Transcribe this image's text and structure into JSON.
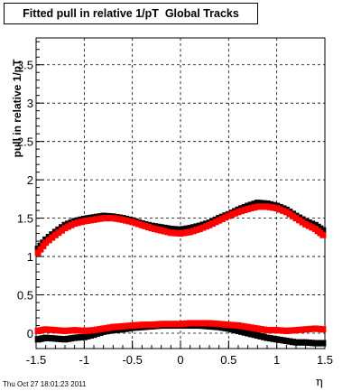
{
  "chart_data": {
    "type": "scatter",
    "title": "Fitted pull in relative 1/pT  Global Tracks",
    "xlabel": "η",
    "ylabel": "pull in relative 1/pT",
    "xlim": [
      -1.5,
      1.5
    ],
    "ylim": [
      -0.2,
      3.85
    ],
    "grid": true,
    "x_ticks": [
      "-1.5",
      "-1",
      "-0.5",
      "0",
      "0.5",
      "1",
      "1.5"
    ],
    "y_ticks": [
      "0",
      "0.5",
      "1",
      "1.5",
      "2",
      "2.5",
      "3",
      "3.5"
    ],
    "series": [
      {
        "color": "#000000",
        "marker": "square",
        "points": [
          [
            -1.48,
            1.1
          ],
          [
            -1.4,
            1.22
          ],
          [
            -1.3,
            1.32
          ],
          [
            -1.2,
            1.41
          ],
          [
            -1.1,
            1.46
          ],
          [
            -1.0,
            1.49
          ],
          [
            -0.9,
            1.51
          ],
          [
            -0.8,
            1.53
          ],
          [
            -0.7,
            1.52
          ],
          [
            -0.6,
            1.5
          ],
          [
            -0.5,
            1.47
          ],
          [
            -0.4,
            1.43
          ],
          [
            -0.3,
            1.4
          ],
          [
            -0.2,
            1.38
          ],
          [
            -0.1,
            1.36
          ],
          [
            0.0,
            1.35
          ],
          [
            0.1,
            1.37
          ],
          [
            0.2,
            1.4
          ],
          [
            0.3,
            1.44
          ],
          [
            0.4,
            1.5
          ],
          [
            0.5,
            1.55
          ],
          [
            0.6,
            1.61
          ],
          [
            0.7,
            1.66
          ],
          [
            0.8,
            1.7
          ],
          [
            0.9,
            1.69
          ],
          [
            1.0,
            1.66
          ],
          [
            1.1,
            1.61
          ],
          [
            1.2,
            1.53
          ],
          [
            1.3,
            1.46
          ],
          [
            1.4,
            1.41
          ],
          [
            1.48,
            1.34
          ]
        ]
      },
      {
        "color": "#ff0000",
        "marker": "square",
        "points": [
          [
            -1.48,
            1.05
          ],
          [
            -1.4,
            1.18
          ],
          [
            -1.3,
            1.28
          ],
          [
            -1.2,
            1.37
          ],
          [
            -1.1,
            1.43
          ],
          [
            -1.0,
            1.46
          ],
          [
            -0.9,
            1.48
          ],
          [
            -0.8,
            1.5
          ],
          [
            -0.7,
            1.5
          ],
          [
            -0.6,
            1.48
          ],
          [
            -0.5,
            1.45
          ],
          [
            -0.4,
            1.41
          ],
          [
            -0.3,
            1.37
          ],
          [
            -0.2,
            1.34
          ],
          [
            -0.1,
            1.31
          ],
          [
            0.0,
            1.3
          ],
          [
            0.1,
            1.32
          ],
          [
            0.2,
            1.36
          ],
          [
            0.3,
            1.41
          ],
          [
            0.4,
            1.47
          ],
          [
            0.5,
            1.53
          ],
          [
            0.6,
            1.58
          ],
          [
            0.7,
            1.62
          ],
          [
            0.8,
            1.65
          ],
          [
            0.9,
            1.65
          ],
          [
            1.0,
            1.63
          ],
          [
            1.1,
            1.58
          ],
          [
            1.2,
            1.5
          ],
          [
            1.3,
            1.42
          ],
          [
            1.4,
            1.36
          ],
          [
            1.48,
            1.28
          ]
        ]
      },
      {
        "color": "#000000",
        "marker": "square",
        "points": [
          [
            -1.48,
            -0.08
          ],
          [
            -1.4,
            -0.06
          ],
          [
            -1.3,
            -0.07
          ],
          [
            -1.2,
            -0.08
          ],
          [
            -1.1,
            -0.06
          ],
          [
            -1.0,
            -0.05
          ],
          [
            -0.9,
            -0.02
          ],
          [
            -0.8,
            0.02
          ],
          [
            -0.7,
            0.04
          ],
          [
            -0.6,
            0.05
          ],
          [
            -0.5,
            0.07
          ],
          [
            -0.4,
            0.08
          ],
          [
            -0.3,
            0.09
          ],
          [
            -0.2,
            0.1
          ],
          [
            -0.1,
            0.1
          ],
          [
            0.0,
            0.1
          ],
          [
            0.1,
            0.1
          ],
          [
            0.2,
            0.1
          ],
          [
            0.3,
            0.09
          ],
          [
            0.4,
            0.08
          ],
          [
            0.5,
            0.06
          ],
          [
            0.6,
            0.03
          ],
          [
            0.7,
            0.0
          ],
          [
            0.8,
            -0.03
          ],
          [
            0.9,
            -0.06
          ],
          [
            1.0,
            -0.08
          ],
          [
            1.1,
            -0.1
          ],
          [
            1.2,
            -0.12
          ],
          [
            1.3,
            -0.12
          ],
          [
            1.4,
            -0.13
          ],
          [
            1.48,
            -0.13
          ]
        ]
      },
      {
        "color": "#ff0000",
        "marker": "square",
        "points": [
          [
            -1.48,
            0.03
          ],
          [
            -1.4,
            0.05
          ],
          [
            -1.3,
            0.04
          ],
          [
            -1.2,
            0.03
          ],
          [
            -1.1,
            0.04
          ],
          [
            -1.0,
            0.03
          ],
          [
            -0.9,
            0.04
          ],
          [
            -0.8,
            0.06
          ],
          [
            -0.7,
            0.08
          ],
          [
            -0.6,
            0.09
          ],
          [
            -0.5,
            0.1
          ],
          [
            -0.4,
            0.11
          ],
          [
            -0.3,
            0.11
          ],
          [
            -0.2,
            0.12
          ],
          [
            -0.1,
            0.12
          ],
          [
            0.0,
            0.12
          ],
          [
            0.1,
            0.13
          ],
          [
            0.2,
            0.13
          ],
          [
            0.3,
            0.13
          ],
          [
            0.4,
            0.12
          ],
          [
            0.5,
            0.11
          ],
          [
            0.6,
            0.1
          ],
          [
            0.7,
            0.08
          ],
          [
            0.8,
            0.06
          ],
          [
            0.9,
            0.04
          ],
          [
            1.0,
            0.04
          ],
          [
            1.1,
            0.03
          ],
          [
            1.2,
            0.04
          ],
          [
            1.3,
            0.05
          ],
          [
            1.4,
            0.06
          ],
          [
            1.48,
            0.05
          ]
        ]
      }
    ]
  },
  "timestamp": "Thu Oct 27 18:01:23 2011"
}
